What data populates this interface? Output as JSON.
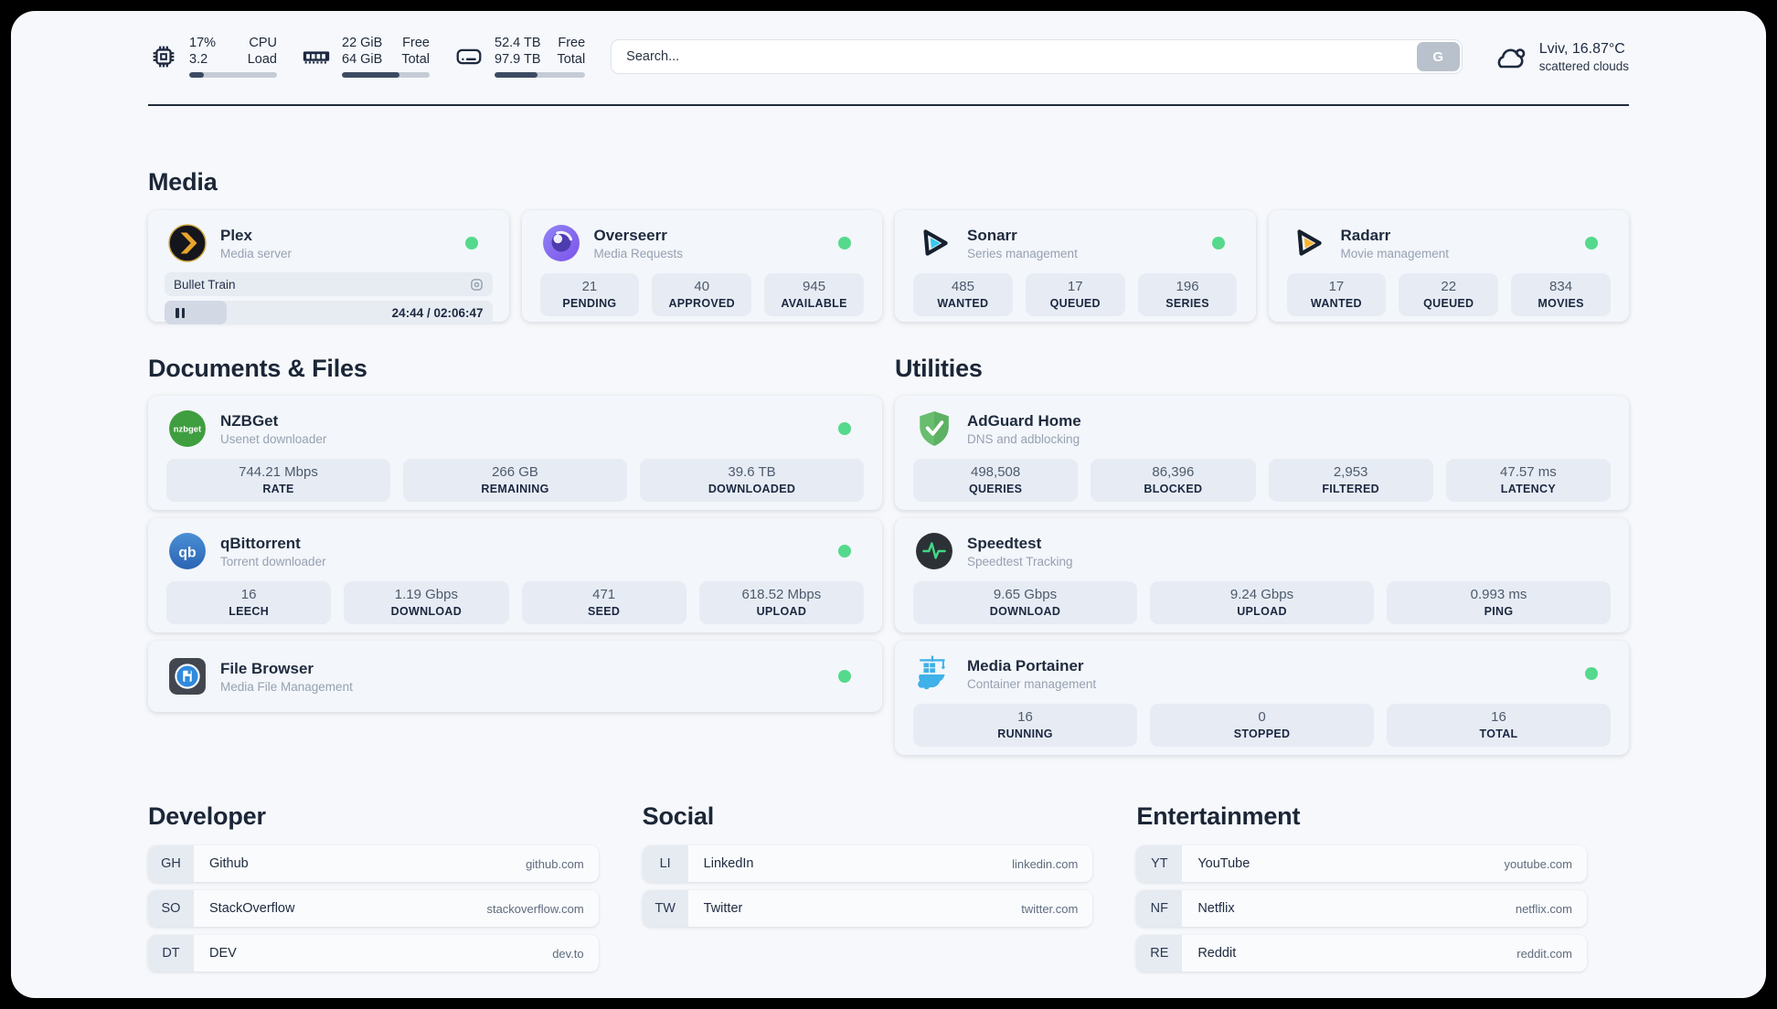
{
  "colors": {
    "status_online": "#55d98c",
    "panel_bg": "#f6f8fb",
    "card_bg": "#f3f6fa",
    "stat_box_bg": "#e7ecf4",
    "text_primary": "#1f2b3e",
    "text_secondary": "#97a1b2",
    "divider": "#222c3b",
    "plex_amber": "#e8a52b",
    "sonarr_cyan": "#35c8f2",
    "radarr_yellow": "#f7b531",
    "nzbget_green": "#3f9e3f",
    "qbittorrent_blue": "#2f72c4",
    "adguard_green": "#68bd6e",
    "speedtest_green": "#41d685",
    "portainer_blue": "#3fb0e8"
  },
  "topbar": {
    "widgets": [
      {
        "icon": "cpu-icon",
        "v1": "17%",
        "v2": "3.2",
        "l1": "CPU",
        "l2": "Load",
        "progress": 17
      },
      {
        "icon": "ram-icon",
        "v1": "22 GiB",
        "v2": "64 GiB",
        "l1": "Free",
        "l2": "Total",
        "progress": 66
      },
      {
        "icon": "disk-icon",
        "v1": "52.4 TB",
        "v2": "97.9 TB",
        "l1": "Free",
        "l2": "Total",
        "progress": 47
      }
    ],
    "search": {
      "placeholder": "Search...",
      "button_label": "G"
    },
    "weather": {
      "location": "Lviv, 16.87°C",
      "condition": "scattered clouds"
    }
  },
  "media": {
    "title": "Media",
    "plex": {
      "icon": "plex-icon",
      "name": "Plex",
      "desc": "Media server",
      "status_dot": true,
      "now_playing": "Bullet Train",
      "time_display": "24:44 / 02:06:47",
      "progress_pct": 19
    },
    "overseerr": {
      "icon": "overseerr-icon",
      "name": "Overseerr",
      "desc": "Media Requests",
      "status_dot": true,
      "stats": [
        {
          "value": "21",
          "label": "PENDING"
        },
        {
          "value": "40",
          "label": "APPROVED"
        },
        {
          "value": "945",
          "label": "AVAILABLE"
        }
      ]
    },
    "sonarr": {
      "icon": "sonarr-icon",
      "name": "Sonarr",
      "desc": "Series management",
      "status_dot": true,
      "stats": [
        {
          "value": "485",
          "label": "WANTED"
        },
        {
          "value": "17",
          "label": "QUEUED"
        },
        {
          "value": "196",
          "label": "SERIES"
        }
      ]
    },
    "radarr": {
      "icon": "radarr-icon",
      "name": "Radarr",
      "desc": "Movie management",
      "status_dot": true,
      "stats": [
        {
          "value": "17",
          "label": "WANTED"
        },
        {
          "value": "22",
          "label": "QUEUED"
        },
        {
          "value": "834",
          "label": "MOVIES"
        }
      ]
    }
  },
  "documents": {
    "title": "Documents & Files",
    "nzbget": {
      "icon": "nzbget-icon",
      "name": "NZBGet",
      "desc": "Usenet downloader",
      "status_dot": true,
      "stats": [
        {
          "value": "744.21 Mbps",
          "label": "RATE"
        },
        {
          "value": "266 GB",
          "label": "REMAINING"
        },
        {
          "value": "39.6 TB",
          "label": "DOWNLOADED"
        }
      ]
    },
    "qbittorrent": {
      "icon": "qbittorrent-icon",
      "name": "qBittorrent",
      "desc": "Torrent downloader",
      "status_dot": true,
      "stats": [
        {
          "value": "16",
          "label": "LEECH"
        },
        {
          "value": "1.19 Gbps",
          "label": "DOWNLOAD"
        },
        {
          "value": "471",
          "label": "SEED"
        },
        {
          "value": "618.52 Mbps",
          "label": "UPLOAD"
        }
      ]
    },
    "filebrowser": {
      "icon": "filebrowser-icon",
      "name": "File Browser",
      "desc": "Media File Management",
      "status_dot": true
    }
  },
  "utilities": {
    "title": "Utilities",
    "adguard": {
      "icon": "adguard-icon",
      "name": "AdGuard Home",
      "desc": "DNS and adblocking",
      "status_dot": false,
      "stats": [
        {
          "value": "498,508",
          "label": "QUERIES"
        },
        {
          "value": "86,396",
          "label": "BLOCKED"
        },
        {
          "value": "2,953",
          "label": "FILTERED"
        },
        {
          "value": "47.57 ms",
          "label": "LATENCY"
        }
      ]
    },
    "speedtest": {
      "icon": "speedtest-icon",
      "name": "Speedtest",
      "desc": "Speedtest Tracking",
      "status_dot": false,
      "stats": [
        {
          "value": "9.65 Gbps",
          "label": "DOWNLOAD"
        },
        {
          "value": "9.24 Gbps",
          "label": "UPLOAD"
        },
        {
          "value": "0.993 ms",
          "label": "PING"
        }
      ]
    },
    "portainer": {
      "icon": "portainer-icon",
      "name": "Media Portainer",
      "desc": "Container management",
      "status_dot": true,
      "stats": [
        {
          "value": "16",
          "label": "RUNNING"
        },
        {
          "value": "0",
          "label": "STOPPED"
        },
        {
          "value": "16",
          "label": "TOTAL"
        }
      ]
    }
  },
  "links": {
    "developer": {
      "title": "Developer",
      "items": [
        {
          "tag": "GH",
          "name": "Github",
          "url": "github.com"
        },
        {
          "tag": "SO",
          "name": "StackOverflow",
          "url": "stackoverflow.com"
        },
        {
          "tag": "DT",
          "name": "DEV",
          "url": "dev.to"
        }
      ]
    },
    "social": {
      "title": "Social",
      "items": [
        {
          "tag": "LI",
          "name": "LinkedIn",
          "url": "linkedin.com"
        },
        {
          "tag": "TW",
          "name": "Twitter",
          "url": "twitter.com"
        }
      ]
    },
    "entertainment": {
      "title": "Entertainment",
      "items": [
        {
          "tag": "YT",
          "name": "YouTube",
          "url": "youtube.com"
        },
        {
          "tag": "NF",
          "name": "Netflix",
          "url": "netflix.com"
        },
        {
          "tag": "RE",
          "name": "Reddit",
          "url": "reddit.com"
        }
      ]
    }
  }
}
